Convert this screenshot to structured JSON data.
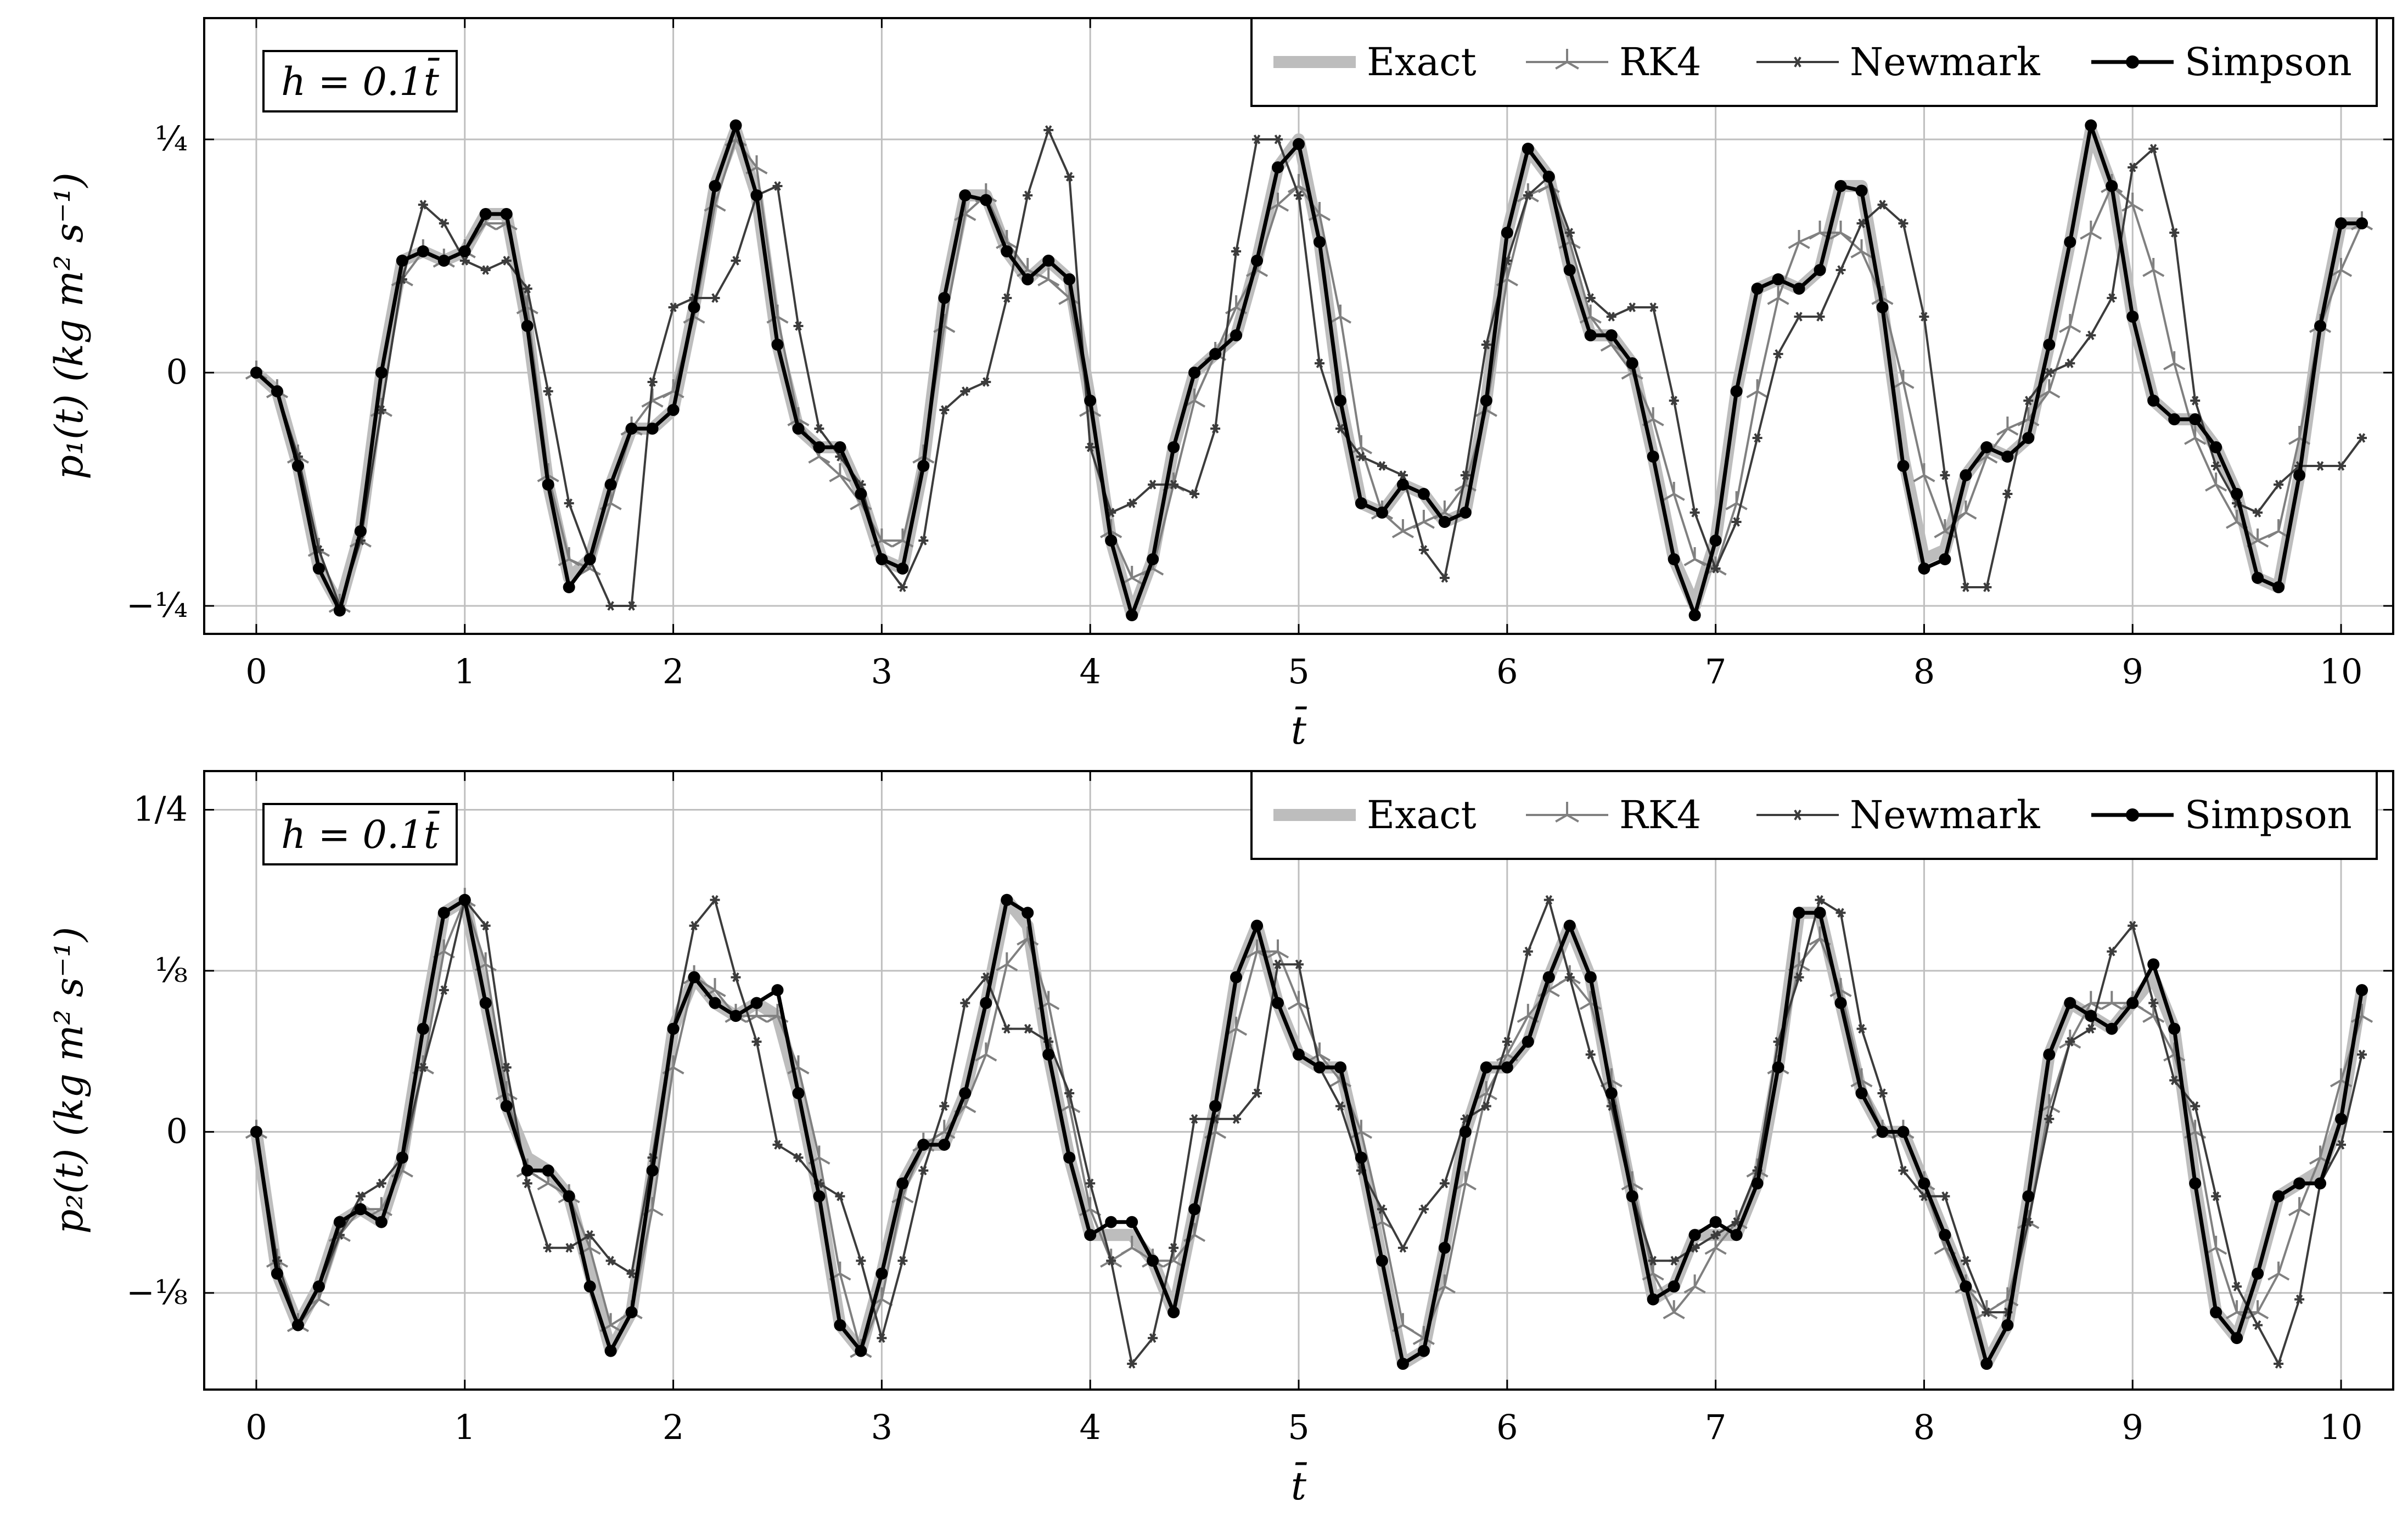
{
  "chart_data": [
    {
      "type": "line",
      "annotation": "h = 0.1t̄",
      "xlabel": "t̄",
      "ylabel": "p₁(t) (kg m² s⁻¹)",
      "xlim": [
        -0.25,
        10.25
      ],
      "ylim": [
        -0.28,
        0.38
      ],
      "xticks": [
        0,
        1,
        2,
        3,
        4,
        5,
        6,
        7,
        8,
        9,
        10
      ],
      "xtick_labels": [
        "0",
        "1",
        "2",
        "3",
        "4",
        "5",
        "6",
        "7",
        "8",
        "9",
        "10"
      ],
      "yticks": [
        -0.25,
        0,
        0.25
      ],
      "ytick_labels": [
        "−¼",
        "0",
        "¼"
      ],
      "grid": true,
      "legend_position": "top-right",
      "x_start": 0,
      "x_step": 0.1,
      "series": [
        {
          "name": "Exact",
          "color": "#bdbdbd",
          "values": [
            0,
            -0.02,
            -0.1,
            -0.21,
            -0.25,
            -0.17,
            0,
            0.12,
            0.13,
            0.12,
            0.13,
            0.17,
            0.17,
            0.05,
            -0.12,
            -0.22,
            -0.2,
            -0.12,
            -0.06,
            -0.06,
            -0.04,
            0.07,
            0.2,
            0.26,
            0.19,
            0.03,
            -0.06,
            -0.08,
            -0.08,
            -0.13,
            -0.2,
            -0.21,
            -0.1,
            0.08,
            0.19,
            0.19,
            0.13,
            0.1,
            0.12,
            0.1,
            -0.03,
            -0.18,
            -0.26,
            -0.2,
            -0.08,
            0,
            0.02,
            0.04,
            0.12,
            0.22,
            0.25,
            0.14,
            -0.03,
            -0.14,
            -0.15,
            -0.12,
            -0.13,
            -0.16,
            -0.15,
            -0.03,
            0.15,
            0.24,
            0.21,
            0.11,
            0.04,
            0.04,
            0.01,
            -0.09,
            -0.2,
            -0.25,
            -0.18,
            -0.02,
            0.09,
            0.1,
            0.09,
            0.11,
            0.2,
            0.2,
            0.07,
            -0.09,
            -0.2,
            -0.19,
            -0.11,
            -0.08,
            -0.09,
            -0.07,
            0.03,
            0.14,
            0.26,
            0.2,
            0.06,
            -0.03,
            -0.05,
            -0.05,
            -0.08,
            -0.13,
            -0.22,
            -0.23,
            -0.11,
            0.05,
            0.16,
            0.16
          ]
        },
        {
          "name": "RK4",
          "color": "#808080",
          "values": [
            0,
            -0.02,
            -0.09,
            -0.19,
            -0.25,
            -0.18,
            -0.04,
            0.1,
            0.13,
            0.12,
            0.13,
            0.16,
            0.16,
            0.07,
            -0.11,
            -0.2,
            -0.21,
            -0.14,
            -0.06,
            -0.03,
            -0.02,
            0.06,
            0.18,
            0.25,
            0.22,
            0.06,
            -0.05,
            -0.09,
            -0.11,
            -0.14,
            -0.18,
            -0.18,
            -0.09,
            0.05,
            0.17,
            0.19,
            0.14,
            0.11,
            0.1,
            0.08,
            -0.04,
            -0.17,
            -0.22,
            -0.21,
            -0.12,
            -0.03,
            0.02,
            0.07,
            0.11,
            0.18,
            0.2,
            0.17,
            0.06,
            -0.08,
            -0.15,
            -0.17,
            -0.16,
            -0.15,
            -0.12,
            -0.04,
            0.1,
            0.19,
            0.2,
            0.14,
            0.06,
            0.03,
            0,
            -0.05,
            -0.13,
            -0.2,
            -0.21,
            -0.14,
            -0.02,
            0.08,
            0.14,
            0.15,
            0.15,
            0.13,
            0.08,
            -0.01,
            -0.11,
            -0.17,
            -0.15,
            -0.09,
            -0.06,
            -0.05,
            -0.02,
            0.05,
            0.15,
            0.2,
            0.18,
            0.11,
            0.01,
            -0.07,
            -0.12,
            -0.16,
            -0.18,
            -0.17,
            -0.07,
            0.05,
            0.11,
            0.16
          ]
        },
        {
          "name": "Newmark",
          "color": "#3c3c3c",
          "values": [
            0,
            -0.02,
            -0.09,
            -0.19,
            -0.25,
            -0.18,
            -0.04,
            0.1,
            0.18,
            0.16,
            0.12,
            0.11,
            0.12,
            0.09,
            -0.02,
            -0.14,
            -0.2,
            -0.25,
            -0.25,
            -0.01,
            0.07,
            0.08,
            0.08,
            0.12,
            0.19,
            0.2,
            0.05,
            -0.06,
            -0.09,
            -0.12,
            -0.2,
            -0.23,
            -0.18,
            -0.04,
            -0.02,
            -0.01,
            0.08,
            0.19,
            0.26,
            0.21,
            -0.08,
            -0.15,
            -0.14,
            -0.12,
            -0.12,
            -0.13,
            -0.06,
            0.13,
            0.25,
            0.25,
            0.19,
            0.01,
            -0.06,
            -0.09,
            -0.1,
            -0.11,
            -0.19,
            -0.22,
            -0.11,
            0.03,
            0.12,
            0.19,
            0.21,
            0.15,
            0.08,
            0.06,
            0.07,
            0.07,
            -0.03,
            -0.15,
            -0.21,
            -0.16,
            -0.07,
            0.02,
            0.06,
            0.06,
            0.11,
            0.16,
            0.18,
            0.16,
            0.06,
            -0.11,
            -0.23,
            -0.23,
            -0.13,
            -0.03,
            0,
            0.01,
            0.04,
            0.08,
            0.22,
            0.24,
            0.15,
            -0.03,
            -0.1,
            -0.14,
            -0.15,
            -0.12,
            -0.1,
            -0.1,
            -0.1,
            -0.07
          ]
        },
        {
          "name": "Simpson",
          "color": "#000000",
          "values": [
            0,
            -0.02,
            -0.1,
            -0.21,
            -0.255,
            -0.17,
            0,
            0.12,
            0.13,
            0.12,
            0.13,
            0.17,
            0.17,
            0.05,
            -0.12,
            -0.23,
            -0.2,
            -0.12,
            -0.06,
            -0.06,
            -0.04,
            0.07,
            0.2,
            0.265,
            0.19,
            0.03,
            -0.06,
            -0.08,
            -0.08,
            -0.13,
            -0.2,
            -0.21,
            -0.1,
            0.08,
            0.19,
            0.185,
            0.13,
            0.1,
            0.12,
            0.1,
            -0.03,
            -0.18,
            -0.26,
            -0.2,
            -0.08,
            0,
            0.02,
            0.04,
            0.12,
            0.22,
            0.245,
            0.14,
            -0.03,
            -0.14,
            -0.15,
            -0.12,
            -0.13,
            -0.16,
            -0.15,
            -0.03,
            0.15,
            0.24,
            0.21,
            0.11,
            0.04,
            0.04,
            0.01,
            -0.09,
            -0.2,
            -0.26,
            -0.18,
            -0.02,
            0.09,
            0.1,
            0.09,
            0.11,
            0.2,
            0.195,
            0.07,
            -0.1,
            -0.21,
            -0.2,
            -0.11,
            -0.08,
            -0.09,
            -0.07,
            0.03,
            0.14,
            0.265,
            0.2,
            0.06,
            -0.03,
            -0.05,
            -0.05,
            -0.08,
            -0.13,
            -0.22,
            -0.23,
            -0.11,
            0.05,
            0.16,
            0.16
          ]
        }
      ]
    },
    {
      "type": "line",
      "annotation": "h = 0.1t̄",
      "xlabel": "t̄",
      "ylabel": "p₂(t) (kg m² s⁻¹)",
      "xlim": [
        -0.25,
        10.25
      ],
      "ylim": [
        -0.2,
        0.28
      ],
      "xticks": [
        0,
        1,
        2,
        3,
        4,
        5,
        6,
        7,
        8,
        9,
        10
      ],
      "xtick_labels": [
        "0",
        "1",
        "2",
        "3",
        "4",
        "5",
        "6",
        "7",
        "8",
        "9",
        "10"
      ],
      "yticks": [
        -0.125,
        0,
        0.125,
        0.25
      ],
      "ytick_labels": [
        "−⅛",
        "0",
        "⅛",
        "1/4"
      ],
      "grid": true,
      "legend_position": "top-right",
      "x_start": 0,
      "x_step": 0.1,
      "series": [
        {
          "name": "Exact",
          "color": "#bdbdbd",
          "values": [
            0,
            -0.11,
            -0.15,
            -0.12,
            -0.07,
            -0.06,
            -0.07,
            -0.02,
            0.08,
            0.17,
            0.18,
            0.1,
            0.02,
            -0.02,
            -0.03,
            -0.05,
            -0.11,
            -0.17,
            -0.14,
            -0.03,
            0.08,
            0.12,
            0.1,
            0.09,
            0.1,
            0.09,
            0.03,
            -0.05,
            -0.15,
            -0.17,
            -0.11,
            -0.04,
            -0.01,
            -0.01,
            0.03,
            0.1,
            0.18,
            0.16,
            0.06,
            -0.02,
            -0.08,
            -0.08,
            -0.08,
            -0.1,
            -0.14,
            -0.06,
            0.02,
            0.12,
            0.16,
            0.1,
            0.06,
            0.05,
            0.05,
            -0.02,
            -0.1,
            -0.18,
            -0.17,
            -0.09,
            0,
            0.05,
            0.05,
            0.07,
            0.12,
            0.16,
            0.12,
            0.03,
            -0.05,
            -0.13,
            -0.12,
            -0.08,
            -0.08,
            -0.08,
            -0.04,
            0.05,
            0.17,
            0.17,
            0.1,
            0.03,
            0,
            0,
            -0.04,
            -0.08,
            -0.12,
            -0.18,
            -0.15,
            -0.05,
            0.06,
            0.1,
            0.09,
            0.08,
            0.1,
            0.12,
            0.08,
            -0.04,
            -0.14,
            -0.16,
            -0.11,
            -0.05,
            -0.04,
            -0.03,
            0.01,
            0.11
          ]
        },
        {
          "name": "RK4",
          "color": "#808080",
          "values": [
            0,
            -0.1,
            -0.15,
            -0.13,
            -0.08,
            -0.06,
            -0.06,
            -0.03,
            0.05,
            0.14,
            0.18,
            0.13,
            0.03,
            -0.03,
            -0.04,
            -0.05,
            -0.09,
            -0.15,
            -0.14,
            -0.06,
            0.05,
            0.12,
            0.11,
            0.09,
            0.09,
            0.09,
            0.05,
            -0.02,
            -0.11,
            -0.17,
            -0.13,
            -0.05,
            -0.01,
            0,
            0.02,
            0.06,
            0.13,
            0.15,
            0.1,
            0.02,
            -0.06,
            -0.1,
            -0.09,
            -0.1,
            -0.1,
            -0.08,
            0,
            0.08,
            0.14,
            0.14,
            0.1,
            0.06,
            0.04,
            0,
            -0.07,
            -0.15,
            -0.16,
            -0.12,
            -0.04,
            0.03,
            0.06,
            0.09,
            0.11,
            0.12,
            0.1,
            0.04,
            -0.04,
            -0.11,
            -0.14,
            -0.12,
            -0.09,
            -0.07,
            -0.03,
            0.05,
            0.13,
            0.15,
            0.11,
            0.04,
            0,
            0,
            -0.04,
            -0.09,
            -0.12,
            -0.14,
            -0.13,
            -0.07,
            0.02,
            0.07,
            0.1,
            0.1,
            0.1,
            0.09,
            0.06,
            0,
            -0.09,
            -0.14,
            -0.14,
            -0.11,
            -0.06,
            -0.02,
            0.04,
            0.09
          ]
        },
        {
          "name": "Newmark",
          "color": "#3c3c3c",
          "values": [
            0,
            -0.1,
            -0.15,
            -0.12,
            -0.08,
            -0.05,
            -0.04,
            -0.02,
            0.05,
            0.11,
            0.18,
            0.16,
            0.05,
            -0.04,
            -0.09,
            -0.09,
            -0.08,
            -0.1,
            -0.11,
            -0.02,
            0.08,
            0.16,
            0.18,
            0.12,
            0.07,
            -0.01,
            -0.02,
            -0.04,
            -0.05,
            -0.1,
            -0.16,
            -0.1,
            -0.03,
            0.02,
            0.1,
            0.12,
            0.08,
            0.08,
            0.07,
            0.03,
            -0.04,
            -0.1,
            -0.18,
            -0.16,
            -0.09,
            0.01,
            0.01,
            0.01,
            0.03,
            0.13,
            0.13,
            0.05,
            0.02,
            -0.03,
            -0.06,
            -0.09,
            -0.06,
            -0.04,
            0.01,
            0.02,
            0.07,
            0.14,
            0.18,
            0.12,
            0.06,
            0.02,
            -0.05,
            -0.1,
            -0.1,
            -0.09,
            -0.08,
            -0.07,
            -0.03,
            0.07,
            0.12,
            0.18,
            0.17,
            0.08,
            0.03,
            -0.03,
            -0.05,
            -0.05,
            -0.1,
            -0.14,
            -0.14,
            -0.07,
            0.01,
            0.07,
            0.08,
            0.14,
            0.16,
            0.1,
            0.04,
            0.02,
            -0.05,
            -0.12,
            -0.15,
            -0.18,
            -0.13,
            -0.04,
            -0.01,
            0.06
          ]
        },
        {
          "name": "Simpson",
          "color": "#000000",
          "values": [
            0,
            -0.11,
            -0.15,
            -0.12,
            -0.07,
            -0.06,
            -0.07,
            -0.02,
            0.08,
            0.17,
            0.18,
            0.1,
            0.02,
            -0.03,
            -0.03,
            -0.05,
            -0.12,
            -0.17,
            -0.14,
            -0.03,
            0.08,
            0.12,
            0.1,
            0.09,
            0.1,
            0.11,
            0.03,
            -0.05,
            -0.15,
            -0.17,
            -0.11,
            -0.04,
            -0.01,
            -0.01,
            0.03,
            0.1,
            0.18,
            0.17,
            0.06,
            -0.02,
            -0.08,
            -0.07,
            -0.07,
            -0.1,
            -0.14,
            -0.06,
            0.02,
            0.12,
            0.16,
            0.1,
            0.06,
            0.05,
            0.05,
            -0.02,
            -0.1,
            -0.18,
            -0.17,
            -0.09,
            0,
            0.05,
            0.05,
            0.07,
            0.12,
            0.16,
            0.12,
            0.03,
            -0.05,
            -0.13,
            -0.12,
            -0.08,
            -0.07,
            -0.08,
            -0.04,
            0.05,
            0.17,
            0.17,
            0.1,
            0.03,
            0,
            0,
            -0.04,
            -0.08,
            -0.12,
            -0.18,
            -0.15,
            -0.05,
            0.06,
            0.1,
            0.09,
            0.08,
            0.1,
            0.13,
            0.08,
            -0.04,
            -0.14,
            -0.16,
            -0.11,
            -0.05,
            -0.04,
            -0.04,
            0.01,
            0.11
          ]
        }
      ]
    }
  ]
}
